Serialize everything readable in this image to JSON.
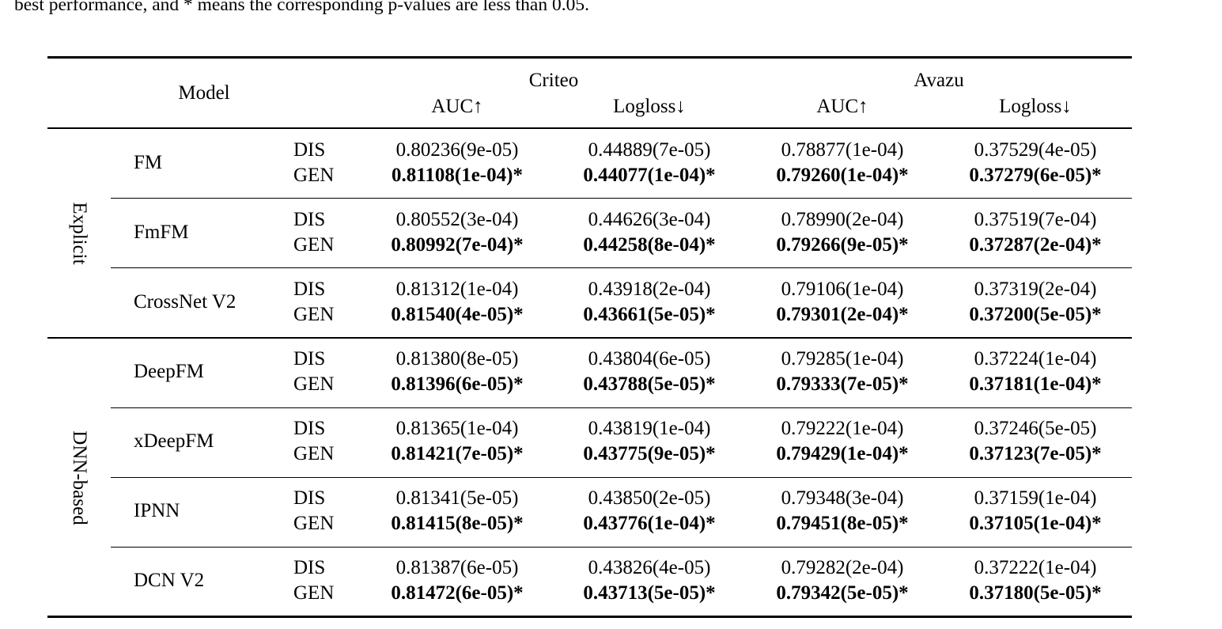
{
  "caption": "best performance, and * means the corresponding p-values are less than 0.05.",
  "header": {
    "model": "Model",
    "datasets": [
      {
        "name": "Criteo",
        "metrics": [
          "AUC↑",
          "Logloss↓"
        ]
      },
      {
        "name": "Avazu",
        "metrics": [
          "AUC↑",
          "Logloss↓"
        ]
      }
    ]
  },
  "groups": [
    {
      "label": "Explicit"
    },
    {
      "label": "DNN-based"
    }
  ],
  "rows": [
    {
      "model": "FM",
      "dis": {
        "label": "DIS",
        "values": [
          "0.80236(9e-05)",
          "0.44889(7e-05)",
          "0.78877(1e-04)",
          "0.37529(4e-05)"
        ]
      },
      "gen": {
        "label": "GEN",
        "values": [
          "0.81108(1e-04)*",
          "0.44077(1e-04)*",
          "0.79260(1e-04)*",
          "0.37279(6e-05)*"
        ]
      }
    },
    {
      "model": "FmFM",
      "dis": {
        "label": "DIS",
        "values": [
          "0.80552(3e-04)",
          "0.44626(3e-04)",
          "0.78990(2e-04)",
          "0.37519(7e-04)"
        ]
      },
      "gen": {
        "label": "GEN",
        "values": [
          "0.80992(7e-04)*",
          "0.44258(8e-04)*",
          "0.79266(9e-05)*",
          "0.37287(2e-04)*"
        ]
      }
    },
    {
      "model": "CrossNet V2",
      "dis": {
        "label": "DIS",
        "values": [
          "0.81312(1e-04)",
          "0.43918(2e-04)",
          "0.79106(1e-04)",
          "0.37319(2e-04)"
        ]
      },
      "gen": {
        "label": "GEN",
        "values": [
          "0.81540(4e-05)*",
          "0.43661(5e-05)*",
          "0.79301(2e-04)*",
          "0.37200(5e-05)*"
        ]
      }
    },
    {
      "model": "DeepFM",
      "dis": {
        "label": "DIS",
        "values": [
          "0.81380(8e-05)",
          "0.43804(6e-05)",
          "0.79285(1e-04)",
          "0.37224(1e-04)"
        ]
      },
      "gen": {
        "label": "GEN",
        "values": [
          "0.81396(6e-05)*",
          "0.43788(5e-05)*",
          "0.79333(7e-05)*",
          "0.37181(1e-04)*"
        ]
      }
    },
    {
      "model": "xDeepFM",
      "dis": {
        "label": "DIS",
        "values": [
          "0.81365(1e-04)",
          "0.43819(1e-04)",
          "0.79222(1e-04)",
          "0.37246(5e-05)"
        ]
      },
      "gen": {
        "label": "GEN",
        "values": [
          "0.81421(7e-05)*",
          "0.43775(9e-05)*",
          "0.79429(1e-04)*",
          "0.37123(7e-05)*"
        ]
      }
    },
    {
      "model": "IPNN",
      "dis": {
        "label": "DIS",
        "values": [
          "0.81341(5e-05)",
          "0.43850(2e-05)",
          "0.79348(3e-04)",
          "0.37159(1e-04)"
        ]
      },
      "gen": {
        "label": "GEN",
        "values": [
          "0.81415(8e-05)*",
          "0.43776(1e-04)*",
          "0.79451(8e-05)*",
          "0.37105(1e-04)*"
        ]
      }
    },
    {
      "model": "DCN V2",
      "dis": {
        "label": "DIS",
        "values": [
          "0.81387(6e-05)",
          "0.43826(4e-05)",
          "0.79282(2e-04)",
          "0.37222(1e-04)"
        ]
      },
      "gen": {
        "label": "GEN",
        "values": [
          "0.81472(6e-05)*",
          "0.43713(5e-05)*",
          "0.79342(5e-05)*",
          "0.37180(5e-05)*"
        ]
      }
    }
  ]
}
